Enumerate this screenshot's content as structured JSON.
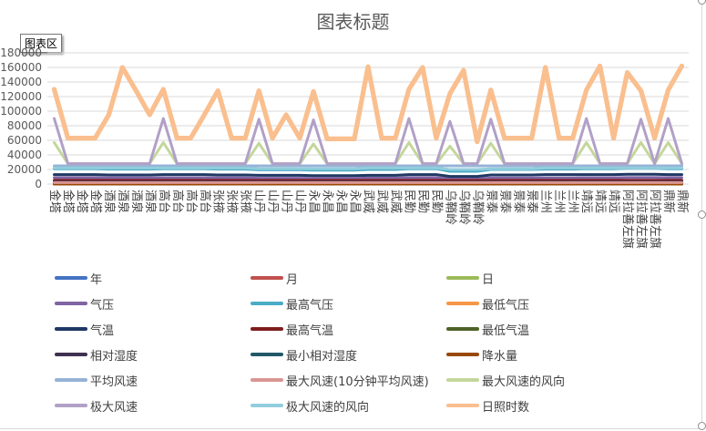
{
  "title": "图表标题",
  "tooltip": "图表区",
  "chart_data": {
    "type": "line",
    "title": "图表标题",
    "xlabel": "",
    "ylabel": "",
    "ylim": [
      0,
      180000
    ],
    "y_ticks": [
      0,
      20000,
      40000,
      60000,
      80000,
      100000,
      120000,
      140000,
      160000,
      180000
    ],
    "y_tick_labels": [
      "0",
      "20000",
      "40000",
      "60000",
      "80000",
      "100000",
      "120000",
      "140000",
      "160000",
      "180000"
    ],
    "grid": true,
    "legend_position": "bottom",
    "categories": [
      "金塔",
      "金塔",
      "金塔",
      "金塔",
      "酒泉",
      "酒泉",
      "酒泉",
      "酒泉",
      "高台",
      "高台",
      "高台",
      "高台",
      "张掖",
      "张掖",
      "张掖",
      "山丹",
      "山丹",
      "山丹",
      "山丹",
      "永昌",
      "永昌",
      "永昌",
      "永昌",
      "武威",
      "武威",
      "武威",
      "民勤",
      "民勤",
      "民勤",
      "乌鞘岭",
      "乌鞘岭",
      "乌鞘岭",
      "景泰",
      "景泰",
      "景泰",
      "景泰",
      "兰州",
      "兰州",
      "兰州",
      "靖远",
      "靖远",
      "靖远",
      "阿拉善左旗",
      "阿拉善左旗",
      "阿拉善左旗",
      "鼎新",
      "鼎新"
    ],
    "series": [
      {
        "name": "年",
        "color": "#4472c4",
        "values": [
          2010,
          2010,
          2010,
          2010,
          2010,
          2010,
          2010,
          2010,
          2010,
          2010,
          2010,
          2010,
          2010,
          2010,
          2010,
          2010,
          2010,
          2010,
          2010,
          2010,
          2010,
          2010,
          2010,
          2010,
          2010,
          2010,
          2010,
          2010,
          2010,
          2010,
          2010,
          2010,
          2010,
          2010,
          2010,
          2010,
          2010,
          2010,
          2010,
          2010,
          2010,
          2010,
          2010,
          2010,
          2010,
          2010,
          2010
        ]
      },
      {
        "name": "月",
        "color": "#c0504d",
        "values": [
          6,
          6,
          6,
          6,
          6,
          6,
          6,
          6,
          6,
          6,
          6,
          6,
          6,
          6,
          6,
          6,
          6,
          6,
          6,
          6,
          6,
          6,
          6,
          6,
          6,
          6,
          6,
          6,
          6,
          6,
          6,
          6,
          6,
          6,
          6,
          6,
          6,
          6,
          6,
          6,
          6,
          6,
          6,
          6,
          6,
          6,
          6
        ]
      },
      {
        "name": "日",
        "color": "#9bbb59",
        "values": [
          1,
          2,
          3,
          4,
          1,
          2,
          3,
          4,
          1,
          2,
          3,
          4,
          1,
          2,
          3,
          1,
          2,
          3,
          4,
          1,
          2,
          3,
          4,
          1,
          2,
          3,
          1,
          2,
          3,
          1,
          2,
          3,
          1,
          2,
          3,
          4,
          1,
          2,
          3,
          1,
          2,
          3,
          1,
          2,
          3,
          1,
          2
        ]
      },
      {
        "name": "气压",
        "color": "#8064a2",
        "values": [
          8800,
          8800,
          8800,
          8800,
          8500,
          8500,
          8500,
          8500,
          8600,
          8600,
          8600,
          8600,
          8500,
          8500,
          8500,
          8000,
          8000,
          8000,
          8000,
          7900,
          7900,
          7900,
          7900,
          8300,
          8300,
          8300,
          8700,
          8700,
          8700,
          7000,
          7000,
          7000,
          8200,
          8200,
          8200,
          8200,
          8500,
          8500,
          8500,
          8600,
          8600,
          8600,
          8900,
          8900,
          8900,
          8800,
          8800
        ]
      },
      {
        "name": "最高气压",
        "color": "#4bacc6",
        "values": [
          21000,
          21000,
          21000,
          21000,
          20500,
          20500,
          20500,
          20500,
          21000,
          21000,
          21000,
          21000,
          20500,
          20500,
          20500,
          19500,
          19500,
          19500,
          19500,
          19000,
          19000,
          19000,
          19000,
          20000,
          20000,
          20000,
          21000,
          21000,
          21000,
          17500,
          17500,
          17500,
          20000,
          20000,
          20000,
          20000,
          20500,
          20500,
          20500,
          21000,
          21000,
          21000,
          21500,
          21500,
          21500,
          21000,
          21000
        ]
      },
      {
        "name": "最低气压",
        "color": "#f79646",
        "values": [
          130000,
          63000,
          63000,
          63000,
          95000,
          160000,
          128000,
          95000,
          130000,
          63000,
          63000,
          95000,
          128000,
          63000,
          63000,
          128000,
          63000,
          95000,
          63000,
          127000,
          62000,
          62000,
          62000,
          161000,
          63000,
          63000,
          130000,
          160000,
          63000,
          124000,
          156000,
          58000,
          129000,
          63000,
          63000,
          63000,
          160000,
          63000,
          63000,
          129000,
          162000,
          63000,
          153000,
          128000,
          63000,
          129000,
          162000
        ]
      },
      {
        "name": "气温",
        "color": "#1f3864",
        "values": [
          13000,
          13000,
          13000,
          13000,
          12500,
          12500,
          12500,
          12500,
          13000,
          13000,
          13000,
          13000,
          12500,
          12500,
          12500,
          12000,
          12000,
          12000,
          12000,
          11500,
          11500,
          11500,
          11500,
          12000,
          12000,
          12000,
          13000,
          13000,
          13000,
          10500,
          10500,
          10500,
          12500,
          12500,
          12500,
          12500,
          13000,
          13000,
          13000,
          13000,
          13000,
          13000,
          13500,
          13500,
          13500,
          13000,
          13000
        ]
      },
      {
        "name": "最高气温",
        "color": "#7f1d1d",
        "values": [
          5000,
          5000,
          5000,
          5000,
          5000,
          5000,
          5000,
          5000,
          5000,
          5000,
          5000,
          5000,
          5000,
          5000,
          5000,
          5000,
          5000,
          5000,
          5000,
          5000,
          5000,
          5000,
          5000,
          5000,
          5000,
          5000,
          5000,
          5000,
          5000,
          5000,
          5000,
          5000,
          5000,
          5000,
          5000,
          5000,
          5000,
          5000,
          5000,
          5000,
          5000,
          5000,
          5000,
          5000,
          5000,
          5000,
          5000
        ]
      },
      {
        "name": "最低气温",
        "color": "#4f6228",
        "values": [
          1500,
          1500,
          1500,
          1500,
          1500,
          1500,
          1500,
          1500,
          1500,
          1500,
          1500,
          1500,
          1500,
          1500,
          1500,
          1500,
          1500,
          1500,
          1500,
          1500,
          1500,
          1500,
          1500,
          1500,
          1500,
          1500,
          1500,
          1500,
          1500,
          1500,
          1500,
          1500,
          1500,
          1500,
          1500,
          1500,
          1500,
          1500,
          1500,
          1500,
          1500,
          1500,
          1500,
          1500,
          1500,
          1500,
          1500
        ]
      },
      {
        "name": "相对湿度",
        "color": "#3f3151",
        "values": [
          3000,
          3000,
          3000,
          3000,
          3000,
          3000,
          3000,
          3000,
          3000,
          3000,
          3000,
          3000,
          3000,
          3000,
          3000,
          3000,
          3000,
          3000,
          3000,
          3000,
          3000,
          3000,
          3000,
          3000,
          3000,
          3000,
          3000,
          3000,
          3000,
          3000,
          3000,
          3000,
          3000,
          3000,
          3000,
          3000,
          3000,
          3000,
          3000,
          3000,
          3000,
          3000,
          3000,
          3000,
          3000,
          3000,
          3000
        ]
      },
      {
        "name": "最小相对湿度",
        "color": "#215968",
        "values": [
          1000,
          1000,
          1000,
          1000,
          1000,
          1000,
          1000,
          1000,
          1000,
          1000,
          1000,
          1000,
          1000,
          1000,
          1000,
          1000,
          1000,
          1000,
          1000,
          1000,
          1000,
          1000,
          1000,
          1000,
          1000,
          1000,
          1000,
          1000,
          1000,
          1000,
          1000,
          1000,
          1000,
          1000,
          1000,
          1000,
          1000,
          1000,
          1000,
          1000,
          1000,
          1000,
          1000,
          1000,
          1000,
          1000,
          1000
        ]
      },
      {
        "name": "降水量",
        "color": "#984807",
        "values": [
          0,
          0,
          0,
          0,
          0,
          0,
          0,
          0,
          0,
          0,
          0,
          0,
          0,
          0,
          0,
          0,
          0,
          0,
          0,
          0,
          0,
          0,
          0,
          0,
          0,
          0,
          0,
          0,
          0,
          0,
          0,
          0,
          0,
          0,
          0,
          0,
          0,
          0,
          0,
          0,
          0,
          0,
          0,
          0,
          0,
          0,
          0
        ]
      },
      {
        "name": "平均风速",
        "color": "#95b3d7",
        "values": [
          25000,
          25000,
          25000,
          25000,
          25000,
          25000,
          25000,
          25000,
          25000,
          25000,
          25000,
          25000,
          25000,
          25000,
          25000,
          25000,
          25000,
          25000,
          25000,
          25000,
          25000,
          25000,
          25000,
          25000,
          25000,
          25000,
          25000,
          25000,
          25000,
          25000,
          25000,
          25000,
          25000,
          25000,
          25000,
          25000,
          25000,
          25000,
          25000,
          25000,
          25000,
          25000,
          25000,
          25000,
          25000,
          25000,
          25000
        ]
      },
      {
        "name": "最大风速(10分钟平均风速)",
        "color": "#da9694",
        "values": [
          2000,
          2000,
          2000,
          2000,
          2000,
          2000,
          2000,
          2000,
          2000,
          2000,
          2000,
          2000,
          2000,
          2000,
          2000,
          2000,
          2000,
          2000,
          2000,
          2000,
          2000,
          2000,
          2000,
          2000,
          2000,
          2000,
          2000,
          2000,
          2000,
          2000,
          2000,
          2000,
          2000,
          2000,
          2000,
          2000,
          2000,
          2000,
          2000,
          2000,
          2000,
          2000,
          2000,
          2000,
          2000,
          2000,
          2000
        ]
      },
      {
        "name": "最大风速的风向",
        "color": "#c4d79b",
        "values": [
          57000,
          28000,
          28000,
          28000,
          28000,
          28000,
          28000,
          28000,
          57000,
          28000,
          28000,
          28000,
          28000,
          28000,
          28000,
          56000,
          28000,
          28000,
          28000,
          55000,
          28000,
          28000,
          28000,
          28000,
          28000,
          28000,
          57000,
          28000,
          28000,
          52000,
          28000,
          28000,
          56000,
          28000,
          28000,
          28000,
          28000,
          28000,
          28000,
          57000,
          28000,
          28000,
          28000,
          57000,
          28000,
          57000,
          28000
        ]
      },
      {
        "name": "极大风速",
        "color": "#b1a0c7",
        "values": [
          90000,
          28000,
          28000,
          28000,
          28000,
          28000,
          28000,
          28000,
          90000,
          28000,
          28000,
          28000,
          28000,
          28000,
          28000,
          89000,
          28000,
          28000,
          28000,
          88000,
          28000,
          28000,
          28000,
          28000,
          28000,
          28000,
          90000,
          28000,
          28000,
          86000,
          28000,
          28000,
          89000,
          28000,
          28000,
          28000,
          28000,
          28000,
          28000,
          90000,
          28000,
          28000,
          28000,
          89000,
          28000,
          90000,
          28000
        ]
      },
      {
        "name": "极大风速的风向",
        "color": "#92cddc",
        "values": [
          22000,
          22000,
          22000,
          22000,
          22000,
          22000,
          22000,
          22000,
          22000,
          22000,
          22000,
          22000,
          22000,
          22000,
          22000,
          21000,
          21000,
          21000,
          21000,
          21000,
          21000,
          21000,
          21000,
          22000,
          22000,
          22000,
          22000,
          22000,
          22000,
          20000,
          20000,
          20000,
          21000,
          21000,
          21000,
          21000,
          22000,
          22000,
          22000,
          22000,
          22000,
          22000,
          22000,
          22000,
          22000,
          22000,
          22000
        ]
      },
      {
        "name": "日照时数",
        "color": "#fabf8f",
        "values": [
          130000,
          63000,
          63000,
          63000,
          95000,
          160000,
          128000,
          95000,
          130000,
          63000,
          63000,
          95000,
          128000,
          63000,
          63000,
          128000,
          63000,
          95000,
          63000,
          127000,
          62000,
          62000,
          62000,
          161000,
          63000,
          63000,
          130000,
          160000,
          63000,
          124000,
          156000,
          58000,
          129000,
          63000,
          63000,
          63000,
          160000,
          63000,
          63000,
          129000,
          162000,
          63000,
          153000,
          128000,
          63000,
          129000,
          162000
        ]
      }
    ]
  }
}
